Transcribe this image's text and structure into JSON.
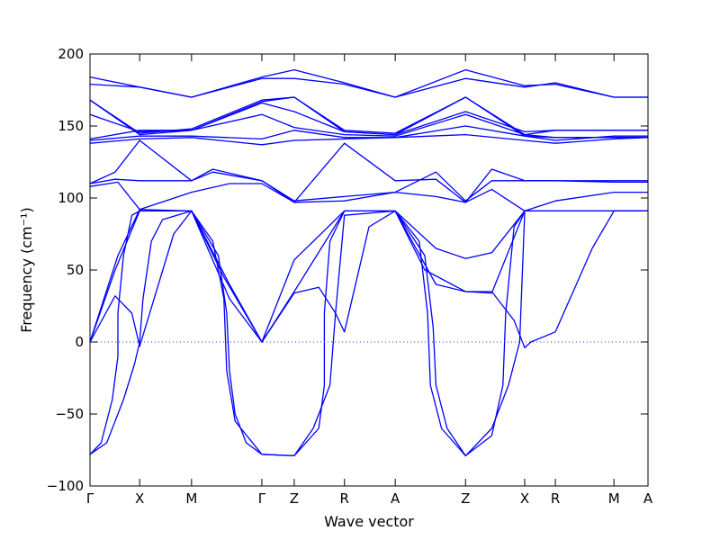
{
  "chart_data": {
    "type": "line",
    "title": "",
    "xlabel": "Wave vector",
    "ylabel": "Frequency (cm⁻¹)",
    "ylim": [
      -100,
      200
    ],
    "yticks": [
      -100,
      -50,
      0,
      50,
      100,
      150,
      200
    ],
    "ytick_labels": [
      "−100",
      "−50",
      "0",
      "50",
      "100",
      "150",
      "200"
    ],
    "x_range": [
      0,
      1
    ],
    "xticks": [
      {
        "label": "Γ",
        "x": 0.0
      },
      {
        "label": "X",
        "x": 0.089
      },
      {
        "label": "M",
        "x": 0.182
      },
      {
        "label": "Γ",
        "x": 0.308
      },
      {
        "label": "Z",
        "x": 0.366
      },
      {
        "label": "R",
        "x": 0.456
      },
      {
        "label": "A",
        "x": 0.547
      },
      {
        "label": "Z",
        "x": 0.673
      },
      {
        "label": "X",
        "x": 0.779
      },
      {
        "label": "R",
        "x": 0.834
      },
      {
        "label": "M",
        "x": 0.939
      },
      {
        "label": "A",
        "x": 1.0
      }
    ],
    "grid": false,
    "line_color": "#0000ff",
    "zero_line": {
      "y": 0,
      "style": "dotted",
      "color": "#3333cc"
    },
    "series": [
      {
        "points": [
          [
            0,
            0
          ],
          [
            0.045,
            50
          ],
          [
            0.089,
            91
          ],
          [
            0.182,
            91
          ],
          [
            0.24,
            45
          ],
          [
            0.308,
            0
          ],
          [
            0.366,
            35
          ],
          [
            0.456,
            91
          ],
          [
            0.547,
            91
          ],
          [
            0.62,
            40
          ],
          [
            0.673,
            35
          ],
          [
            0.72,
            34
          ],
          [
            0.779,
            91
          ],
          [
            0.834,
            91
          ],
          [
            0.939,
            91
          ],
          [
            1.0,
            91
          ]
        ]
      },
      {
        "points": [
          [
            0,
            0
          ],
          [
            0.05,
            60
          ],
          [
            0.089,
            92
          ],
          [
            0.182,
            91
          ],
          [
            0.25,
            40
          ],
          [
            0.308,
            0
          ],
          [
            0.366,
            57
          ],
          [
            0.456,
            91
          ],
          [
            0.547,
            91
          ],
          [
            0.62,
            65
          ],
          [
            0.673,
            58
          ],
          [
            0.72,
            62
          ],
          [
            0.779,
            91
          ],
          [
            0.834,
            91
          ],
          [
            0.939,
            91
          ],
          [
            1.0,
            91
          ]
        ]
      },
      {
        "points": [
          [
            0,
            0
          ],
          [
            0.045,
            32
          ],
          [
            0.075,
            20
          ],
          [
            0.089,
            -3
          ],
          [
            0.15,
            75
          ],
          [
            0.182,
            91
          ],
          [
            0.25,
            30
          ],
          [
            0.308,
            0
          ],
          [
            0.366,
            34
          ],
          [
            0.41,
            38
          ],
          [
            0.44,
            20
          ],
          [
            0.456,
            7
          ],
          [
            0.5,
            80
          ],
          [
            0.547,
            91
          ],
          [
            0.6,
            50
          ],
          [
            0.673,
            35
          ],
          [
            0.72,
            35
          ],
          [
            0.76,
            15
          ],
          [
            0.779,
            -4
          ],
          [
            0.79,
            0
          ],
          [
            0.834,
            7
          ],
          [
            0.9,
            65
          ],
          [
            0.939,
            91
          ],
          [
            1.0,
            91
          ]
        ]
      },
      {
        "points": [
          [
            0,
            -78
          ],
          [
            0.03,
            -70
          ],
          [
            0.06,
            -40
          ],
          [
            0.08,
            -15
          ],
          [
            0.089,
            0
          ],
          [
            0.095,
            30
          ],
          [
            0.11,
            70
          ],
          [
            0.13,
            85
          ],
          [
            0.182,
            91
          ],
          [
            0.23,
            60
          ],
          [
            0.245,
            20
          ],
          [
            0.25,
            -20
          ],
          [
            0.26,
            -50
          ],
          [
            0.28,
            -70
          ],
          [
            0.308,
            -78
          ],
          [
            0.366,
            -79
          ],
          [
            0.4,
            -60
          ],
          [
            0.43,
            -30
          ],
          [
            0.44,
            20
          ],
          [
            0.456,
            88
          ],
          [
            0.547,
            91
          ],
          [
            0.6,
            60
          ],
          [
            0.615,
            10
          ],
          [
            0.62,
            -30
          ],
          [
            0.64,
            -60
          ],
          [
            0.673,
            -79
          ],
          [
            0.72,
            -60
          ],
          [
            0.75,
            -30
          ],
          [
            0.77,
            0
          ],
          [
            0.779,
            90
          ]
        ]
      },
      {
        "points": [
          [
            0,
            -78
          ],
          [
            0.02,
            -70
          ],
          [
            0.04,
            -40
          ],
          [
            0.05,
            -10
          ],
          [
            0.05,
            20
          ],
          [
            0.06,
            60
          ],
          [
            0.075,
            88
          ],
          [
            0.089,
            91
          ]
        ]
      },
      {
        "points": [
          [
            0.182,
            91
          ],
          [
            0.22,
            70
          ],
          [
            0.24,
            30
          ],
          [
            0.245,
            -20
          ],
          [
            0.26,
            -55
          ],
          [
            0.308,
            -78
          ],
          [
            0.366,
            -79
          ],
          [
            0.41,
            -60
          ],
          [
            0.42,
            -30
          ],
          [
            0.42,
            20
          ],
          [
            0.43,
            70
          ],
          [
            0.456,
            91
          ]
        ]
      },
      {
        "points": [
          [
            0.547,
            91
          ],
          [
            0.59,
            70
          ],
          [
            0.605,
            20
          ],
          [
            0.61,
            -30
          ],
          [
            0.63,
            -60
          ],
          [
            0.673,
            -79
          ],
          [
            0.72,
            -65
          ],
          [
            0.74,
            -30
          ],
          [
            0.745,
            20
          ],
          [
            0.76,
            80
          ],
          [
            0.779,
            91
          ]
        ]
      },
      {
        "points": [
          [
            0,
            108
          ],
          [
            0.05,
            111
          ],
          [
            0.089,
            92
          ],
          [
            0.182,
            104
          ],
          [
            0.25,
            110
          ],
          [
            0.308,
            110
          ],
          [
            0.366,
            97
          ],
          [
            0.456,
            98
          ],
          [
            0.547,
            104
          ],
          [
            0.62,
            101
          ],
          [
            0.673,
            97
          ],
          [
            0.72,
            106
          ],
          [
            0.779,
            91
          ],
          [
            0.834,
            98
          ],
          [
            0.939,
            104
          ],
          [
            1.0,
            104
          ]
        ]
      },
      {
        "points": [
          [
            0,
            110
          ],
          [
            0.045,
            113
          ],
          [
            0.089,
            112
          ],
          [
            0.182,
            112
          ],
          [
            0.22,
            120
          ],
          [
            0.308,
            112
          ],
          [
            0.366,
            98
          ],
          [
            0.456,
            101
          ],
          [
            0.547,
            104
          ],
          [
            0.62,
            118
          ],
          [
            0.673,
            98
          ],
          [
            0.72,
            112
          ],
          [
            0.779,
            112
          ],
          [
            0.834,
            112
          ],
          [
            0.939,
            111
          ],
          [
            1.0,
            111
          ]
        ]
      },
      {
        "points": [
          [
            0,
            110
          ],
          [
            0.045,
            118
          ],
          [
            0.089,
            140
          ],
          [
            0.182,
            112
          ],
          [
            0.22,
            118
          ],
          [
            0.308,
            112
          ],
          [
            0.366,
            97
          ],
          [
            0.456,
            138
          ],
          [
            0.547,
            112
          ],
          [
            0.62,
            113
          ],
          [
            0.673,
            97
          ],
          [
            0.72,
            120
          ],
          [
            0.779,
            112
          ],
          [
            0.834,
            112
          ],
          [
            0.939,
            112
          ],
          [
            1.0,
            112
          ]
        ]
      },
      {
        "points": [
          [
            0,
            138
          ],
          [
            0.089,
            141
          ],
          [
            0.182,
            142
          ],
          [
            0.308,
            137
          ],
          [
            0.366,
            140
          ],
          [
            0.456,
            141
          ],
          [
            0.547,
            142
          ],
          [
            0.673,
            144
          ],
          [
            0.779,
            140
          ],
          [
            0.834,
            138
          ],
          [
            0.939,
            141
          ],
          [
            1.0,
            142
          ]
        ]
      },
      {
        "points": [
          [
            0,
            140
          ],
          [
            0.089,
            143
          ],
          [
            0.182,
            143
          ],
          [
            0.308,
            141
          ],
          [
            0.366,
            147
          ],
          [
            0.456,
            142
          ],
          [
            0.547,
            142
          ],
          [
            0.673,
            150
          ],
          [
            0.779,
            143
          ],
          [
            0.834,
            140
          ],
          [
            0.939,
            143
          ],
          [
            1.0,
            143
          ]
        ]
      },
      {
        "points": [
          [
            0,
            141
          ],
          [
            0.089,
            147
          ],
          [
            0.182,
            147
          ],
          [
            0.308,
            158
          ],
          [
            0.366,
            149
          ],
          [
            0.456,
            144
          ],
          [
            0.547,
            143
          ],
          [
            0.673,
            158
          ],
          [
            0.779,
            144
          ],
          [
            0.834,
            147
          ],
          [
            0.939,
            147
          ],
          [
            1.0,
            147
          ]
        ]
      },
      {
        "points": [
          [
            0,
            158
          ],
          [
            0.089,
            146
          ],
          [
            0.182,
            147
          ],
          [
            0.308,
            166
          ],
          [
            0.366,
            160
          ],
          [
            0.456,
            146
          ],
          [
            0.547,
            144
          ],
          [
            0.673,
            160
          ],
          [
            0.779,
            146
          ],
          [
            0.834,
            147
          ],
          [
            0.939,
            147
          ],
          [
            1.0,
            147
          ]
        ]
      },
      {
        "points": [
          [
            0,
            168
          ],
          [
            0.089,
            145
          ],
          [
            0.182,
            148
          ],
          [
            0.308,
            168
          ],
          [
            0.366,
            170
          ],
          [
            0.456,
            146
          ],
          [
            0.547,
            144
          ],
          [
            0.673,
            170
          ],
          [
            0.779,
            143
          ],
          [
            0.834,
            142
          ],
          [
            0.939,
            142
          ],
          [
            1.0,
            142
          ]
        ]
      },
      {
        "points": [
          [
            0,
            168
          ],
          [
            0.089,
            144
          ],
          [
            0.182,
            147
          ],
          [
            0.308,
            167
          ],
          [
            0.366,
            170
          ],
          [
            0.456,
            147
          ],
          [
            0.547,
            145
          ],
          [
            0.673,
            170
          ],
          [
            0.779,
            144
          ],
          [
            0.834,
            142
          ],
          [
            0.939,
            142
          ],
          [
            1.0,
            142
          ]
        ]
      },
      {
        "points": [
          [
            0,
            179
          ],
          [
            0.089,
            177
          ],
          [
            0.182,
            170
          ],
          [
            0.308,
            183
          ],
          [
            0.366,
            183
          ],
          [
            0.456,
            179
          ],
          [
            0.547,
            170
          ],
          [
            0.673,
            183
          ],
          [
            0.779,
            177
          ],
          [
            0.834,
            180
          ],
          [
            0.939,
            170
          ],
          [
            1.0,
            170
          ]
        ]
      },
      {
        "points": [
          [
            0,
            184
          ],
          [
            0.089,
            177
          ],
          [
            0.182,
            170
          ],
          [
            0.308,
            184
          ],
          [
            0.366,
            189
          ],
          [
            0.456,
            180
          ],
          [
            0.547,
            170
          ],
          [
            0.673,
            189
          ],
          [
            0.779,
            178
          ],
          [
            0.834,
            179
          ],
          [
            0.939,
            170
          ],
          [
            1.0,
            170
          ]
        ]
      }
    ]
  }
}
